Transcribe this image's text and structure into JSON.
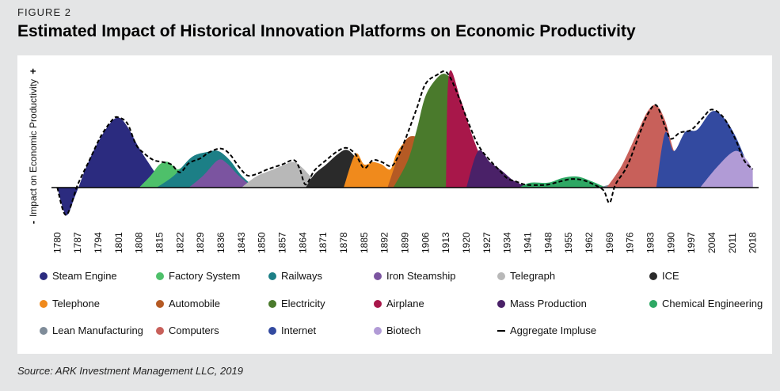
{
  "figure_label": "FIGURE 2",
  "title": "Estimated Impact of Historical Innovation Platforms on Economic Productivity",
  "source": "Source: ARK Investment Management LLC, 2019",
  "chart_data": {
    "type": "area",
    "title": "Estimated Impact of Historical Innovation Platforms on Economic Productivity",
    "ylabel": "Impact on Economic Productivity",
    "ylabel_minus": "-",
    "ylabel_plus": "+",
    "xlabel": "",
    "xlim": [
      1778,
      2020
    ],
    "ylim": [
      -0.5,
      2.2
    ],
    "grid": false,
    "legend_position": "bottom",
    "x_ticks": [
      1780,
      1787,
      1794,
      1801,
      1808,
      1815,
      1822,
      1829,
      1836,
      1843,
      1850,
      1857,
      1864,
      1871,
      1878,
      1885,
      1892,
      1899,
      1906,
      1913,
      1920,
      1927,
      1934,
      1941,
      1948,
      1955,
      1962,
      1969,
      1976,
      1983,
      1990,
      1997,
      2004,
      2011,
      2018
    ],
    "series": [
      {
        "name": "Steam Engine",
        "color": "#2b2b7f",
        "points": [
          [
            1780,
            0
          ],
          [
            1783,
            -0.45
          ],
          [
            1786,
            -0.15
          ],
          [
            1790,
            0.35
          ],
          [
            1794,
            0.75
          ],
          [
            1798,
            1.05
          ],
          [
            1801,
            1.15
          ],
          [
            1804,
            1.0
          ],
          [
            1808,
            0.65
          ],
          [
            1812,
            0.35
          ],
          [
            1815,
            0.15
          ],
          [
            1818,
            0.04
          ],
          [
            1822,
            0
          ]
        ]
      },
      {
        "name": "Factory System",
        "color": "#4ec06a",
        "points": [
          [
            1808,
            0
          ],
          [
            1812,
            0.2
          ],
          [
            1815,
            0.38
          ],
          [
            1818,
            0.42
          ],
          [
            1821,
            0.3
          ],
          [
            1824,
            0.36
          ],
          [
            1828,
            0.3
          ],
          [
            1832,
            0.18
          ],
          [
            1836,
            0.06
          ],
          [
            1840,
            0
          ]
        ]
      },
      {
        "name": "Railways",
        "color": "#1c7f86",
        "points": [
          [
            1814,
            0
          ],
          [
            1820,
            0.2
          ],
          [
            1826,
            0.5
          ],
          [
            1831,
            0.58
          ],
          [
            1835,
            0.6
          ],
          [
            1839,
            0.45
          ],
          [
            1843,
            0.2
          ],
          [
            1847,
            0.04
          ],
          [
            1850,
            0
          ]
        ]
      },
      {
        "name": "Iron Steamship",
        "color": "#7b54a0",
        "points": [
          [
            1825,
            0
          ],
          [
            1830,
            0.2
          ],
          [
            1835,
            0.45
          ],
          [
            1838,
            0.4
          ],
          [
            1842,
            0.2
          ],
          [
            1846,
            0.05
          ],
          [
            1849,
            0
          ]
        ]
      },
      {
        "name": "Telegraph",
        "color": "#b8b8b8",
        "points": [
          [
            1843,
            0
          ],
          [
            1848,
            0.18
          ],
          [
            1853,
            0.28
          ],
          [
            1858,
            0.38
          ],
          [
            1861,
            0.42
          ],
          [
            1864,
            0.32
          ],
          [
            1868,
            0.12
          ],
          [
            1872,
            0.04
          ],
          [
            1875,
            0
          ]
        ]
      },
      {
        "name": "ICE",
        "color": "#2a2a2a",
        "points": [
          [
            1865,
            0
          ],
          [
            1868,
            0.22
          ],
          [
            1872,
            0.38
          ],
          [
            1876,
            0.55
          ],
          [
            1879,
            0.62
          ],
          [
            1882,
            0.5
          ],
          [
            1886,
            0.25
          ],
          [
            1890,
            0.08
          ],
          [
            1894,
            0
          ]
        ]
      },
      {
        "name": "Telephone",
        "color": "#f08a1c",
        "points": [
          [
            1878,
            0
          ],
          [
            1882,
            0.55
          ],
          [
            1885,
            0.38
          ],
          [
            1888,
            0.42
          ],
          [
            1891,
            0.38
          ],
          [
            1894,
            0.3
          ],
          [
            1896,
            0.55
          ],
          [
            1899,
            0.75
          ],
          [
            1903,
            0.82
          ],
          [
            1907,
            0.7
          ],
          [
            1910,
            0.45
          ],
          [
            1913,
            0.2
          ],
          [
            1916,
            0.05
          ],
          [
            1919,
            0
          ]
        ]
      },
      {
        "name": "Automobile",
        "color": "#b55a24",
        "points": [
          [
            1893,
            0
          ],
          [
            1897,
            0.55
          ],
          [
            1900,
            0.82
          ],
          [
            1904,
            0.82
          ],
          [
            1908,
            0.72
          ],
          [
            1912,
            0.5
          ],
          [
            1916,
            0.25
          ],
          [
            1920,
            0.08
          ],
          [
            1923,
            0
          ]
        ]
      },
      {
        "name": "Electricity",
        "color": "#4a7a2c",
        "points": [
          [
            1895,
            0
          ],
          [
            1900,
            0.45
          ],
          [
            1903,
            0.95
          ],
          [
            1906,
            1.5
          ],
          [
            1910,
            1.8
          ],
          [
            1913,
            1.86
          ],
          [
            1916,
            1.65
          ],
          [
            1920,
            1.1
          ],
          [
            1924,
            0.55
          ],
          [
            1928,
            0.2
          ],
          [
            1932,
            0.04
          ],
          [
            1934,
            0
          ]
        ]
      },
      {
        "name": "Airplane",
        "color": "#a8174a",
        "points": [
          [
            1913,
            0
          ],
          [
            1914,
            1.86
          ],
          [
            1918,
            1.45
          ],
          [
            1922,
            0.85
          ],
          [
            1926,
            0.4
          ],
          [
            1930,
            0.18
          ],
          [
            1934,
            0.06
          ],
          [
            1937,
            0
          ]
        ]
      },
      {
        "name": "Mass Production",
        "color": "#4a2168",
        "points": [
          [
            1920,
            0
          ],
          [
            1924,
            0.6
          ],
          [
            1928,
            0.42
          ],
          [
            1932,
            0.28
          ],
          [
            1936,
            0.12
          ],
          [
            1940,
            0.03
          ],
          [
            1942,
            0
          ]
        ]
      },
      {
        "name": "Chemical Engineering",
        "color": "#2ea864",
        "points": [
          [
            1938,
            0
          ],
          [
            1942,
            0.08
          ],
          [
            1948,
            0.08
          ],
          [
            1953,
            0.16
          ],
          [
            1958,
            0.18
          ],
          [
            1963,
            0.1
          ],
          [
            1967,
            0.02
          ],
          [
            1970,
            0
          ]
        ]
      },
      {
        "name": "Lean Manufacturing",
        "color": "#7f8c99",
        "points": [
          [
            1965,
            0
          ],
          [
            1970,
            0.06
          ],
          [
            1976,
            0.15
          ],
          [
            1982,
            0.2
          ],
          [
            1988,
            0.14
          ],
          [
            1993,
            0.04
          ],
          [
            1996,
            0
          ]
        ]
      },
      {
        "name": "Computers",
        "color": "#c8605a",
        "points": [
          [
            1968,
            0
          ],
          [
            1973,
            0.35
          ],
          [
            1978,
            0.85
          ],
          [
            1982,
            1.25
          ],
          [
            1985,
            1.35
          ],
          [
            1988,
            1.1
          ],
          [
            1991,
            0.6
          ],
          [
            1995,
            0.15
          ],
          [
            1999,
            0
          ]
        ]
      },
      {
        "name": "Internet",
        "color": "#334aa0",
        "points": [
          [
            1985,
            0
          ],
          [
            1988,
            0.9
          ],
          [
            1991,
            0.6
          ],
          [
            1995,
            0.92
          ],
          [
            1999,
            0.95
          ],
          [
            2004,
            1.25
          ],
          [
            2008,
            1.15
          ],
          [
            2012,
            0.85
          ],
          [
            2016,
            0.4
          ],
          [
            2018,
            0.1
          ]
        ]
      },
      {
        "name": "Biotech",
        "color": "#b19bd6",
        "points": [
          [
            2000,
            0
          ],
          [
            2006,
            0.35
          ],
          [
            2012,
            0.6
          ],
          [
            2016,
            0.45
          ],
          [
            2018,
            0.28
          ]
        ]
      }
    ],
    "aggregate": {
      "name": "Aggregate Impluse",
      "points": [
        [
          1780,
          0
        ],
        [
          1783,
          -0.45
        ],
        [
          1787,
          0.05
        ],
        [
          1791,
          0.45
        ],
        [
          1795,
          0.85
        ],
        [
          1799,
          1.12
        ],
        [
          1801,
          1.15
        ],
        [
          1804,
          1.05
        ],
        [
          1807,
          0.7
        ],
        [
          1810,
          0.55
        ],
        [
          1813,
          0.45
        ],
        [
          1816,
          0.42
        ],
        [
          1819,
          0.38
        ],
        [
          1822,
          0.25
        ],
        [
          1825,
          0.4
        ],
        [
          1829,
          0.48
        ],
        [
          1832,
          0.58
        ],
        [
          1836,
          0.64
        ],
        [
          1839,
          0.55
        ],
        [
          1842,
          0.35
        ],
        [
          1845,
          0.2
        ],
        [
          1848,
          0.22
        ],
        [
          1852,
          0.3
        ],
        [
          1857,
          0.38
        ],
        [
          1861,
          0.45
        ],
        [
          1863,
          0.3
        ],
        [
          1865,
          0.05
        ],
        [
          1868,
          0.28
        ],
        [
          1872,
          0.45
        ],
        [
          1876,
          0.6
        ],
        [
          1879,
          0.65
        ],
        [
          1882,
          0.55
        ],
        [
          1885,
          0.32
        ],
        [
          1888,
          0.45
        ],
        [
          1891,
          0.42
        ],
        [
          1894,
          0.35
        ],
        [
          1896,
          0.45
        ],
        [
          1899,
          0.78
        ],
        [
          1903,
          1.3
        ],
        [
          1906,
          1.7
        ],
        [
          1910,
          1.85
        ],
        [
          1913,
          1.9
        ],
        [
          1916,
          1.65
        ],
        [
          1920,
          1.15
        ],
        [
          1924,
          0.7
        ],
        [
          1928,
          0.45
        ],
        [
          1931,
          0.3
        ],
        [
          1934,
          0.15
        ],
        [
          1937,
          0.1
        ],
        [
          1940,
          0.05
        ],
        [
          1944,
          0.04
        ],
        [
          1948,
          0.05
        ],
        [
          1952,
          0.1
        ],
        [
          1956,
          0.14
        ],
        [
          1960,
          0.12
        ],
        [
          1964,
          0.04
        ],
        [
          1967,
          -0.05
        ],
        [
          1969,
          -0.25
        ],
        [
          1971,
          0.05
        ],
        [
          1975,
          0.35
        ],
        [
          1979,
          0.85
        ],
        [
          1982,
          1.2
        ],
        [
          1985,
          1.35
        ],
        [
          1988,
          1.0
        ],
        [
          1990,
          0.8
        ],
        [
          1993,
          0.9
        ],
        [
          1997,
          0.95
        ],
        [
          2001,
          1.15
        ],
        [
          2004,
          1.28
        ],
        [
          2008,
          1.15
        ],
        [
          2012,
          0.8
        ],
        [
          2015,
          0.45
        ],
        [
          2018,
          0.3
        ]
      ]
    }
  },
  "legend": {
    "items": [
      {
        "label": "Steam Engine",
        "color": "#2b2b7f"
      },
      {
        "label": "Factory System",
        "color": "#4ec06a"
      },
      {
        "label": "Railways",
        "color": "#1c7f86"
      },
      {
        "label": "Iron Steamship",
        "color": "#7b54a0"
      },
      {
        "label": "Telegraph",
        "color": "#b8b8b8"
      },
      {
        "label": "ICE",
        "color": "#2a2a2a"
      },
      {
        "label": "Telephone",
        "color": "#f08a1c"
      },
      {
        "label": "Automobile",
        "color": "#b55a24"
      },
      {
        "label": "Electricity",
        "color": "#4a7a2c"
      },
      {
        "label": "Airplane",
        "color": "#a8174a"
      },
      {
        "label": "Mass Production",
        "color": "#4a2168"
      },
      {
        "label": "Chemical Engineering",
        "color": "#2ea864"
      },
      {
        "label": "Lean Manufacturing",
        "color": "#7f8c99"
      },
      {
        "label": "Computers",
        "color": "#c8605a"
      },
      {
        "label": "Internet",
        "color": "#334aa0"
      },
      {
        "label": "Biotech",
        "color": "#b19bd6"
      }
    ],
    "aggregate_label": "Aggregate Impluse"
  }
}
